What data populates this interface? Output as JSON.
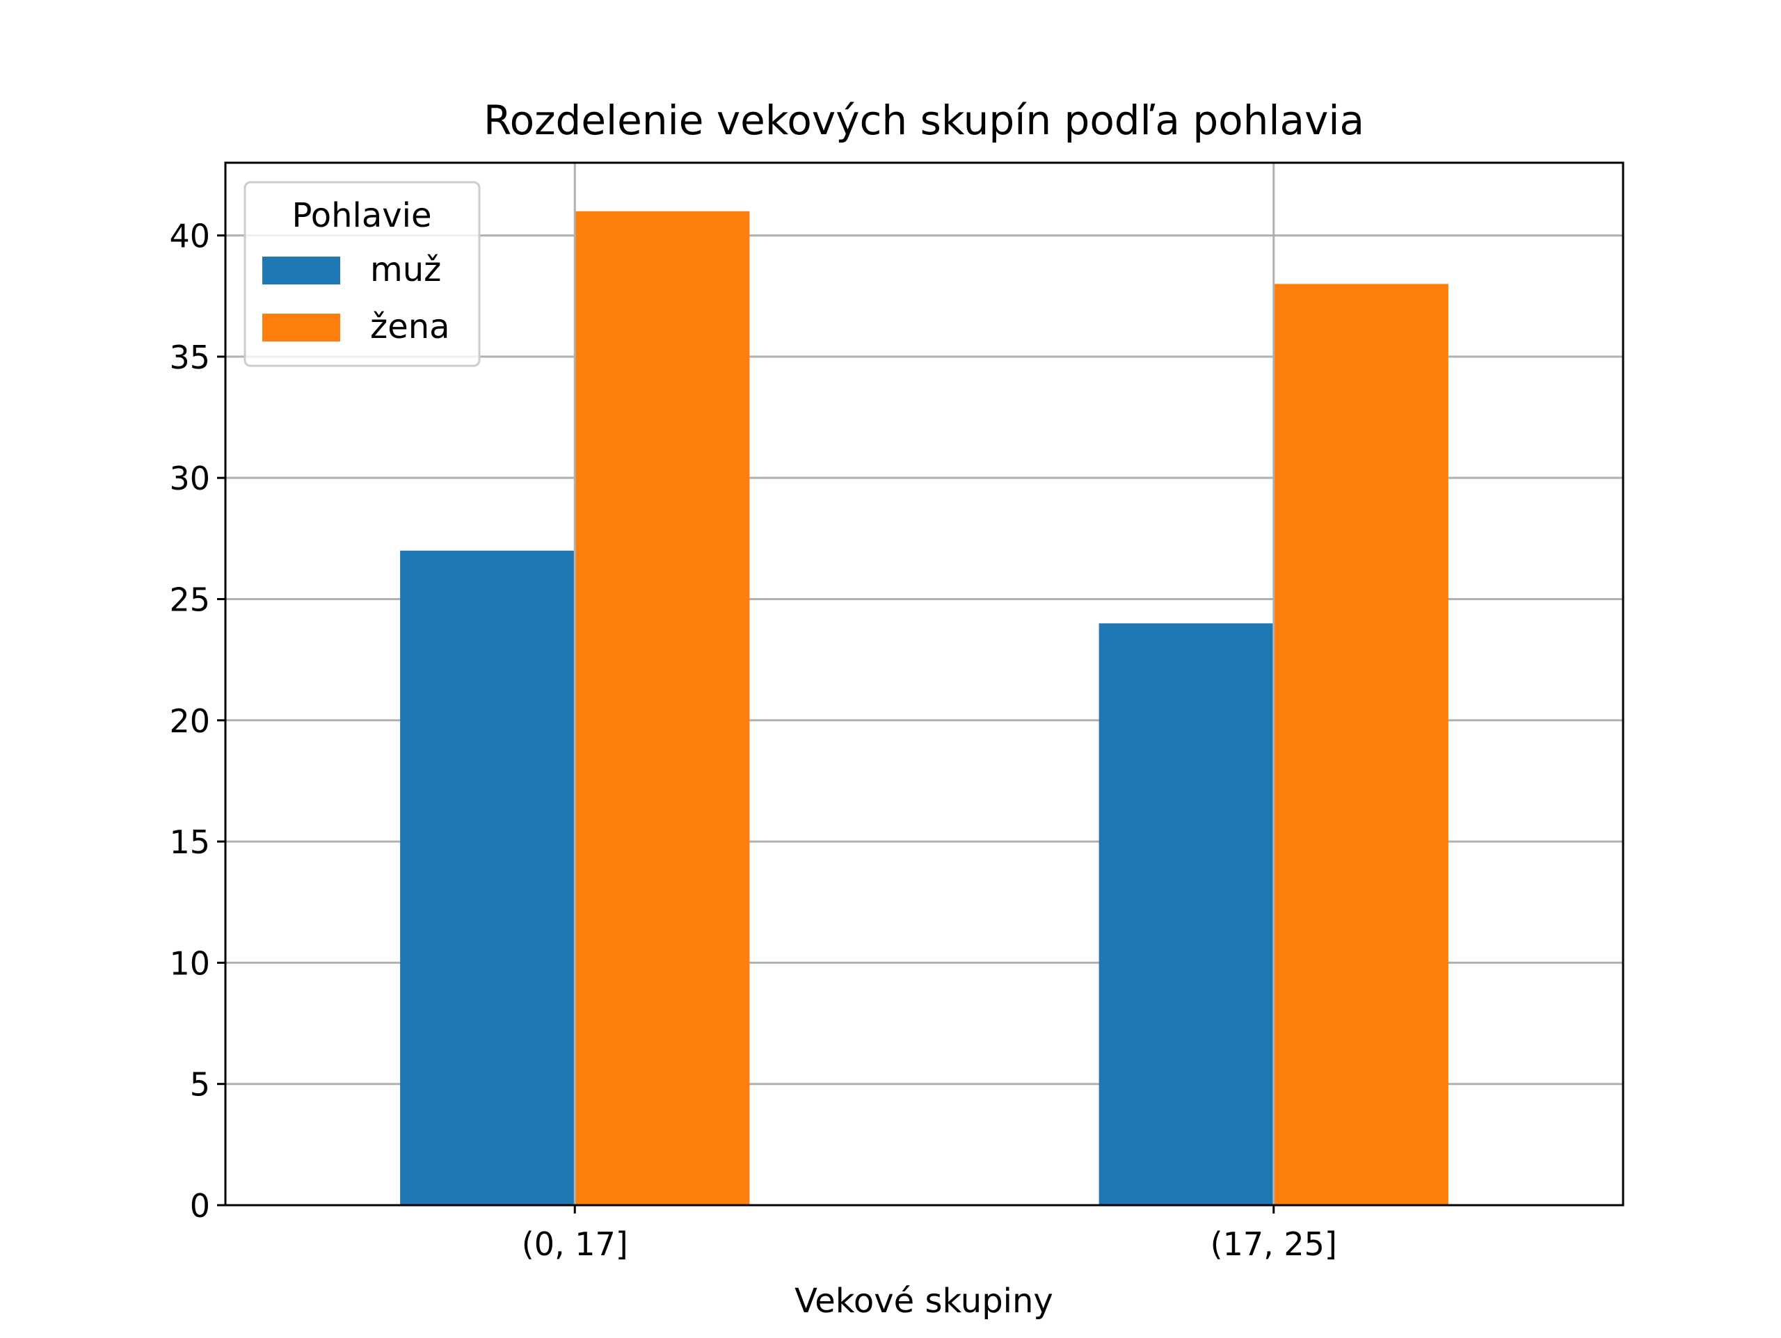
{
  "chart_data": {
    "type": "bar",
    "title": "Rozdelenie vekových skupín podľa pohlavia",
    "xlabel": "Vekové skupiny",
    "ylabel": "",
    "categories": [
      "(0, 17]",
      "(17, 25]"
    ],
    "series": [
      {
        "name": "muž",
        "values": [
          27,
          24
        ],
        "color": "#1f77b4"
      },
      {
        "name": "žena",
        "values": [
          41,
          38
        ],
        "color": "#ff7f0e"
      }
    ],
    "ylim": [
      0,
      43
    ],
    "yticks": [
      0,
      5,
      10,
      15,
      20,
      25,
      30,
      35,
      40
    ],
    "grid": true,
    "legend": {
      "title": "Pohlavie",
      "placement": "top-left"
    }
  }
}
